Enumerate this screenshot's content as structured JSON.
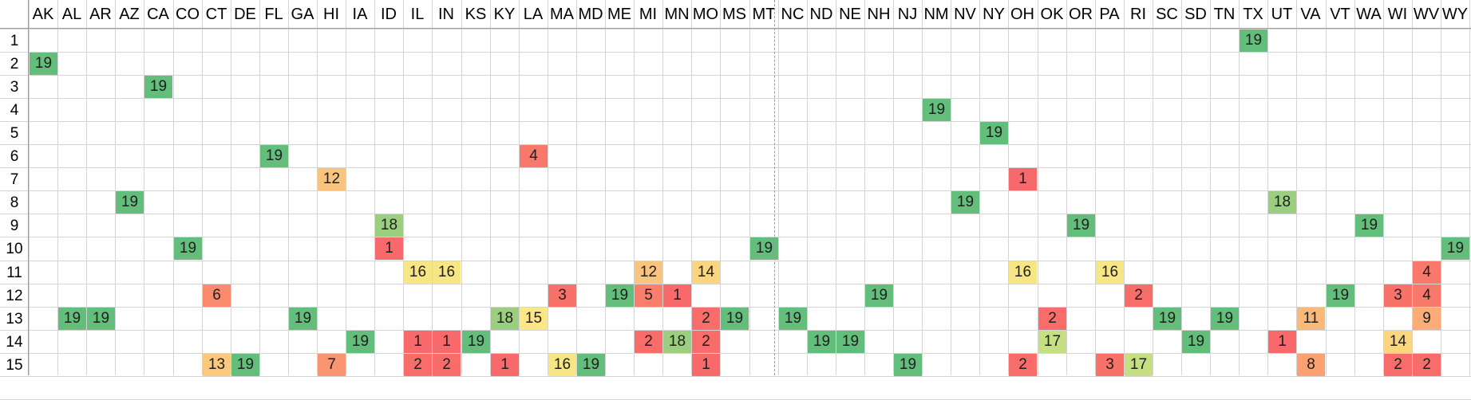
{
  "columns": [
    "AK",
    "AL",
    "AR",
    "AZ",
    "CA",
    "CO",
    "CT",
    "DE",
    "FL",
    "GA",
    "HI",
    "IA",
    "ID",
    "IL",
    "IN",
    "KS",
    "KY",
    "LA",
    "MA",
    "MD",
    "ME",
    "MI",
    "MN",
    "MO",
    "MS",
    "MT",
    "NC",
    "ND",
    "NE",
    "NH",
    "NJ",
    "NM",
    "NV",
    "NY",
    "OH",
    "OK",
    "OR",
    "PA",
    "RI",
    "SC",
    "SD",
    "TN",
    "TX",
    "UT",
    "VA",
    "VT",
    "WA",
    "WI",
    "WV",
    "WY"
  ],
  "rows": [
    "1",
    "2",
    "3",
    "4",
    "5",
    "6",
    "7",
    "8",
    "9",
    "10",
    "11",
    "12",
    "13",
    "14",
    "15"
  ],
  "colors": {
    "19": "#63be7b",
    "18": "#9bcf7f",
    "17": "#c6df82",
    "16": "#f7e784",
    "15": "#fde784",
    "14": "#fcd580",
    "13": "#fbc97d",
    "12": "#fbc47c",
    "11": "#fbb979",
    "9": "#fbac77",
    "8": "#faa073",
    "7": "#f99570",
    "6": "#f98a6e",
    "5": "#f97e6c",
    "4": "#f8786b",
    "3": "#f8726a",
    "2": "#f86d69",
    "1": "#f8696b"
  },
  "cells": [
    {
      "row": "1",
      "col": "TX",
      "value": "19"
    },
    {
      "row": "2",
      "col": "AK",
      "value": "19"
    },
    {
      "row": "3",
      "col": "CA",
      "value": "19"
    },
    {
      "row": "4",
      "col": "NM",
      "value": "19"
    },
    {
      "row": "5",
      "col": "NY",
      "value": "19"
    },
    {
      "row": "6",
      "col": "FL",
      "value": "19"
    },
    {
      "row": "6",
      "col": "LA",
      "value": "4"
    },
    {
      "row": "7",
      "col": "HI",
      "value": "12"
    },
    {
      "row": "7",
      "col": "OH",
      "value": "1"
    },
    {
      "row": "8",
      "col": "AZ",
      "value": "19"
    },
    {
      "row": "8",
      "col": "NV",
      "value": "19"
    },
    {
      "row": "8",
      "col": "UT",
      "value": "18"
    },
    {
      "row": "9",
      "col": "ID",
      "value": "18"
    },
    {
      "row": "9",
      "col": "OR",
      "value": "19"
    },
    {
      "row": "9",
      "col": "WA",
      "value": "19"
    },
    {
      "row": "10",
      "col": "CO",
      "value": "19"
    },
    {
      "row": "10",
      "col": "ID",
      "value": "1"
    },
    {
      "row": "10",
      "col": "MT",
      "value": "19"
    },
    {
      "row": "10",
      "col": "WY",
      "value": "19"
    },
    {
      "row": "11",
      "col": "IL",
      "value": "16"
    },
    {
      "row": "11",
      "col": "IN",
      "value": "16"
    },
    {
      "row": "11",
      "col": "MI",
      "value": "12"
    },
    {
      "row": "11",
      "col": "MO",
      "value": "14"
    },
    {
      "row": "11",
      "col": "OH",
      "value": "16"
    },
    {
      "row": "11",
      "col": "PA",
      "value": "16"
    },
    {
      "row": "11",
      "col": "WV",
      "value": "4"
    },
    {
      "row": "12",
      "col": "CT",
      "value": "6"
    },
    {
      "row": "12",
      "col": "MA",
      "value": "3"
    },
    {
      "row": "12",
      "col": "ME",
      "value": "19"
    },
    {
      "row": "12",
      "col": "MI",
      "value": "5"
    },
    {
      "row": "12",
      "col": "MN",
      "value": "1"
    },
    {
      "row": "12",
      "col": "NH",
      "value": "19"
    },
    {
      "row": "12",
      "col": "RI",
      "value": "2"
    },
    {
      "row": "12",
      "col": "VT",
      "value": "19"
    },
    {
      "row": "12",
      "col": "WI",
      "value": "3"
    },
    {
      "row": "12",
      "col": "WV",
      "value": "4"
    },
    {
      "row": "13",
      "col": "AL",
      "value": "19"
    },
    {
      "row": "13",
      "col": "AR",
      "value": "19"
    },
    {
      "row": "13",
      "col": "GA",
      "value": "19"
    },
    {
      "row": "13",
      "col": "KY",
      "value": "18"
    },
    {
      "row": "13",
      "col": "LA",
      "value": "15"
    },
    {
      "row": "13",
      "col": "MO",
      "value": "2"
    },
    {
      "row": "13",
      "col": "MS",
      "value": "19"
    },
    {
      "row": "13",
      "col": "NC",
      "value": "19"
    },
    {
      "row": "13",
      "col": "OK",
      "value": "2"
    },
    {
      "row": "13",
      "col": "SC",
      "value": "19"
    },
    {
      "row": "13",
      "col": "TN",
      "value": "19"
    },
    {
      "row": "13",
      "col": "VA",
      "value": "11"
    },
    {
      "row": "13",
      "col": "WV",
      "value": "9"
    },
    {
      "row": "14",
      "col": "IA",
      "value": "19"
    },
    {
      "row": "14",
      "col": "IL",
      "value": "1"
    },
    {
      "row": "14",
      "col": "IN",
      "value": "1"
    },
    {
      "row": "14",
      "col": "KS",
      "value": "19"
    },
    {
      "row": "14",
      "col": "MI",
      "value": "2"
    },
    {
      "row": "14",
      "col": "MN",
      "value": "18"
    },
    {
      "row": "14",
      "col": "MO",
      "value": "2"
    },
    {
      "row": "14",
      "col": "ND",
      "value": "19"
    },
    {
      "row": "14",
      "col": "NE",
      "value": "19"
    },
    {
      "row": "14",
      "col": "OK",
      "value": "17"
    },
    {
      "row": "14",
      "col": "SD",
      "value": "19"
    },
    {
      "row": "14",
      "col": "UT",
      "value": "1"
    },
    {
      "row": "14",
      "col": "WI",
      "value": "14"
    },
    {
      "row": "15",
      "col": "CT",
      "value": "13"
    },
    {
      "row": "15",
      "col": "DE",
      "value": "19"
    },
    {
      "row": "15",
      "col": "HI",
      "value": "7"
    },
    {
      "row": "15",
      "col": "IL",
      "value": "2"
    },
    {
      "row": "15",
      "col": "IN",
      "value": "2"
    },
    {
      "row": "15",
      "col": "KY",
      "value": "1"
    },
    {
      "row": "15",
      "col": "MA",
      "value": "16"
    },
    {
      "row": "15",
      "col": "MD",
      "value": "19"
    },
    {
      "row": "15",
      "col": "MO",
      "value": "1"
    },
    {
      "row": "15",
      "col": "NJ",
      "value": "19"
    },
    {
      "row": "15",
      "col": "OH",
      "value": "2"
    },
    {
      "row": "15",
      "col": "PA",
      "value": "3"
    },
    {
      "row": "15",
      "col": "RI",
      "value": "17"
    },
    {
      "row": "15",
      "col": "VA",
      "value": "8"
    },
    {
      "row": "15",
      "col": "WI",
      "value": "2"
    },
    {
      "row": "15",
      "col": "WV",
      "value": "2"
    }
  ]
}
